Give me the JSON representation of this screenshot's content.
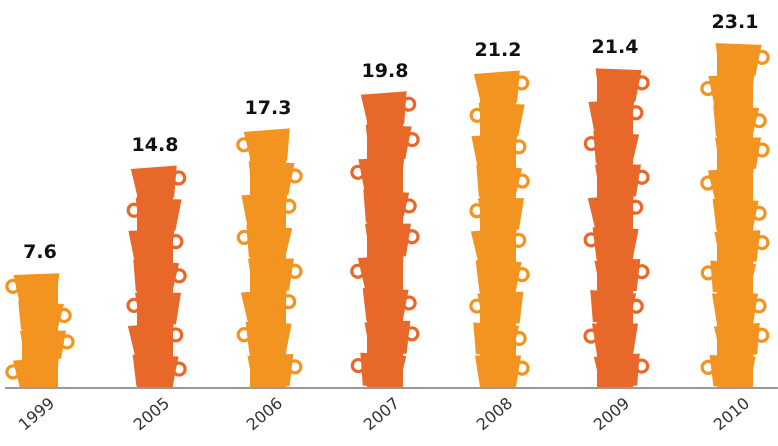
{
  "chart_data": {
    "type": "bar",
    "title": "",
    "xlabel": "",
    "ylabel": "",
    "categories": [
      "1999",
      "2005",
      "2006",
      "2007",
      "2008",
      "2009",
      "2010"
    ],
    "values": [
      7.6,
      14.8,
      17.3,
      19.8,
      21.2,
      21.4,
      23.1
    ],
    "value_labels": [
      "7.6",
      "14.8",
      "17.3",
      "19.8",
      "21.2",
      "21.4",
      "23.1"
    ],
    "ylim": [
      0,
      25
    ],
    "grid": false,
    "legend": "none",
    "mark_style": "stacked-cups",
    "bar_colors": [
      "#f39320",
      "#e8682a",
      "#f39320",
      "#e8682a",
      "#f39320",
      "#e8682a",
      "#f39320"
    ],
    "axis_color": "#999999"
  }
}
